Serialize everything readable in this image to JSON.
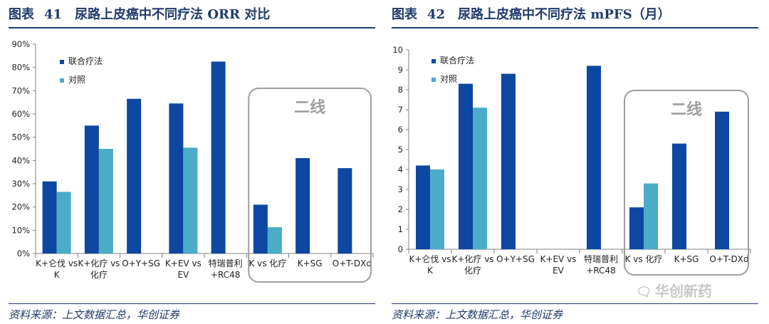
{
  "watermark": {
    "icon": "wechat-icon",
    "text": "华创新药"
  },
  "colors": {
    "main": "#0d47a1",
    "control": "#4aacc6",
    "frame": "#9e9e9e",
    "highlight_text": "#9e9e9e"
  },
  "panels": [
    {
      "fig_label": "图表",
      "fig_num": "41",
      "title": "尿路上皮癌中不同疗法 ORR 对比",
      "source": "资料来源：上文数据汇总，华创证券",
      "chart_data": {
        "type": "bar",
        "categories": [
          [
            "K+仑伐 vs",
            "K"
          ],
          [
            "K+化疗 vs",
            "化疗"
          ],
          [
            "O+Y+SG"
          ],
          [
            "K+EV vs",
            "EV"
          ],
          [
            "特瑞普利",
            "+RC48"
          ],
          [
            "K vs 化疗"
          ],
          [
            "K+SG"
          ],
          [
            "O+T-DXd"
          ]
        ],
        "series": [
          {
            "name": "联合疗法",
            "values": [
              31,
              55,
              66.5,
              64.5,
              82.5,
              21,
              41,
              36.7
            ]
          },
          {
            "name": "对照",
            "values": [
              26.5,
              45,
              null,
              45.5,
              null,
              11.3,
              null,
              null
            ]
          }
        ],
        "yticks": [
          "0%",
          "10%",
          "20%",
          "30%",
          "40%",
          "50%",
          "60%",
          "70%",
          "80%",
          "90%"
        ],
        "ylim": [
          0,
          90
        ],
        "highlight": {
          "label": "二线",
          "from_index": 5,
          "to_index": 7
        },
        "legend": "top-left"
      }
    },
    {
      "fig_label": "图表",
      "fig_num": "42",
      "title": "尿路上皮癌中不同疗法 mPFS（月）",
      "source": "资料来源：上文数据汇总，华创证券",
      "chart_data": {
        "type": "bar",
        "categories": [
          [
            "K+仑伐 vs",
            "K"
          ],
          [
            "K+化疗 vs",
            "化疗"
          ],
          [
            "O+Y+SG"
          ],
          [
            "K+EV vs",
            "EV"
          ],
          [
            "特瑞普利",
            "+RC48"
          ],
          [
            "K vs 化疗"
          ],
          [
            "K+SG"
          ],
          [
            "O+T-DXd"
          ]
        ],
        "series": [
          {
            "name": "联合疗法",
            "values": [
              4.2,
              8.3,
              8.8,
              null,
              9.2,
              2.1,
              5.3,
              6.9
            ]
          },
          {
            "name": "对照",
            "values": [
              4.0,
              7.1,
              null,
              null,
              null,
              3.3,
              null,
              null
            ]
          }
        ],
        "yticks": [
          "0",
          "1",
          "2",
          "3",
          "4",
          "5",
          "6",
          "7",
          "8",
          "9",
          "10"
        ],
        "ylim": [
          0,
          10
        ],
        "highlight": {
          "label": "二线",
          "from_index": 5,
          "to_index": 7
        },
        "legend": "top-left"
      }
    }
  ]
}
